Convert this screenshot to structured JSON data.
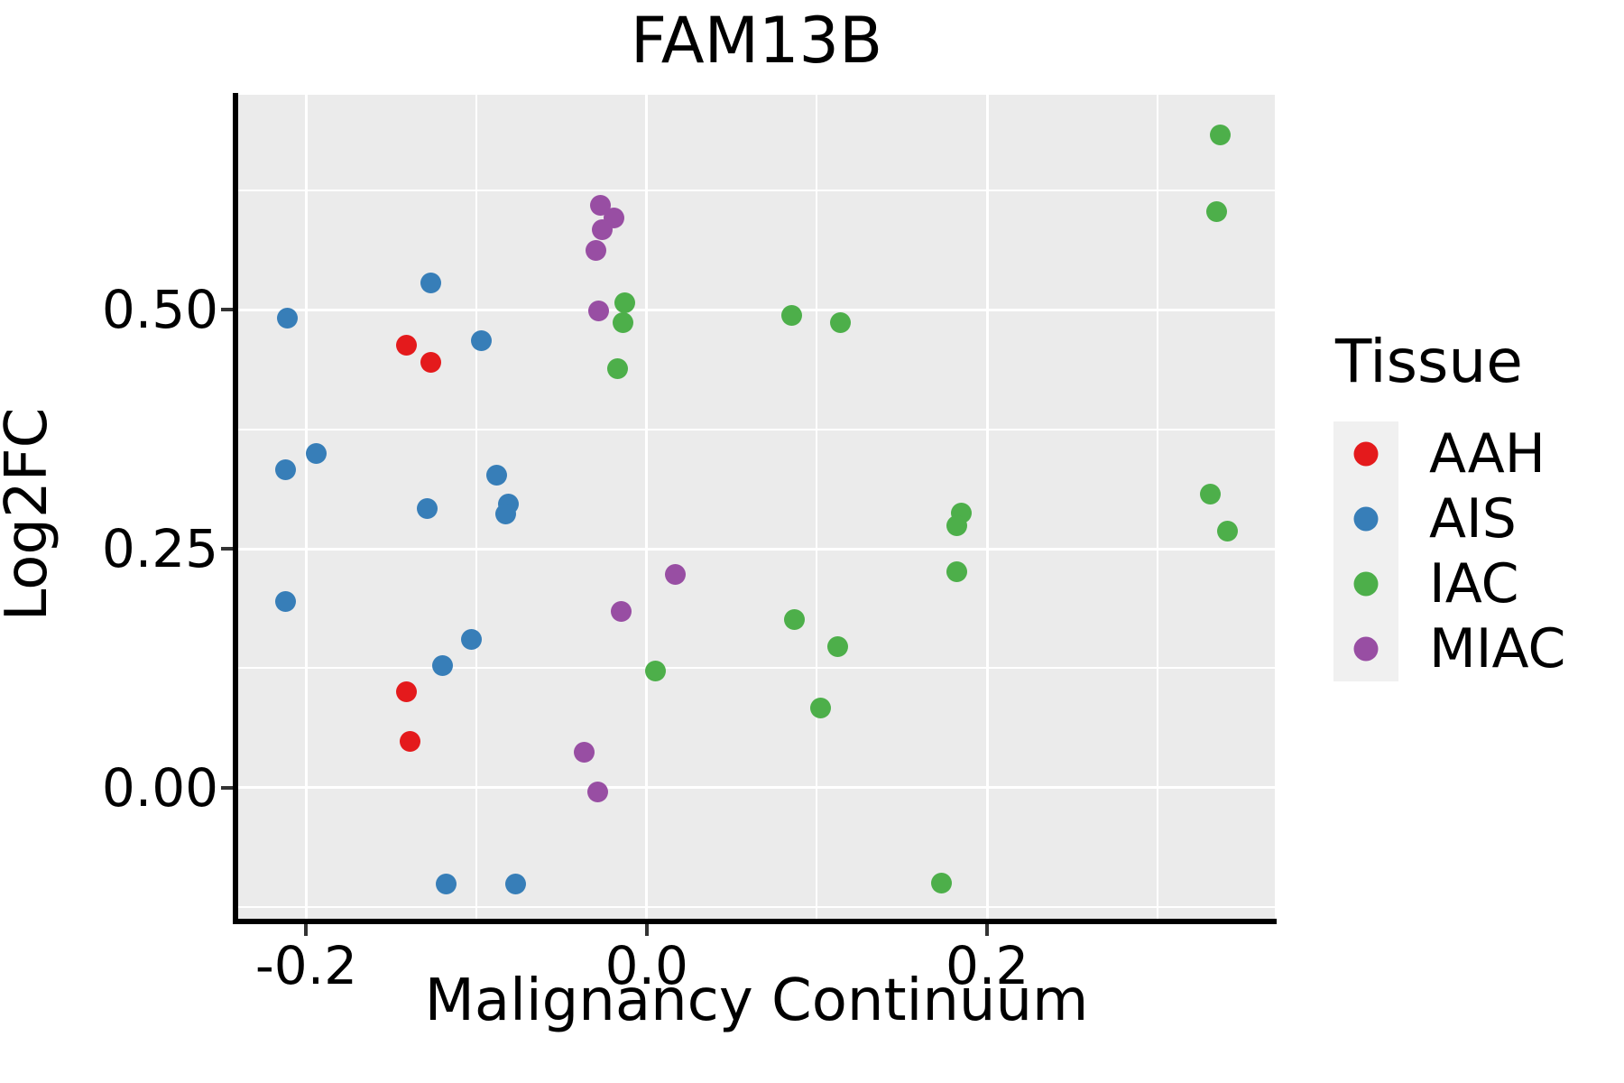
{
  "title": "FAM13B",
  "axes": {
    "x_label": "Malignancy Continuum",
    "y_label": "Log2FC"
  },
  "legend": {
    "title": "Tissue",
    "items": [
      {
        "label": "AAH",
        "color": "#E41A1C"
      },
      {
        "label": "AIS",
        "color": "#377EB8"
      },
      {
        "label": "IAC",
        "color": "#4DAF4A"
      },
      {
        "label": "MIAC",
        "color": "#984EA3"
      }
    ]
  },
  "colors": {
    "panel_background": "#EBEBEB",
    "gridline": "#FFFFFF",
    "axis_line": "#000000",
    "aah": "#E41A1C",
    "ais": "#377EB8",
    "iac": "#4DAF4A",
    "miac": "#984EA3"
  },
  "chart_data": {
    "type": "scatter",
    "title": "FAM13B",
    "xlabel": "Malignancy Continuum",
    "ylabel": "Log2FC",
    "xlim": [
      -0.24,
      0.369
    ],
    "ylim": [
      -0.139,
      0.725
    ],
    "grid": true,
    "legend_position": "right",
    "legend_title": "Tissue",
    "x_ticks": [
      {
        "value": -0.2,
        "label": "-0.2"
      },
      {
        "value": 0.0,
        "label": "0.0"
      },
      {
        "value": 0.2,
        "label": "0.2"
      }
    ],
    "y_ticks": [
      {
        "value": 0.0,
        "label": "0.00"
      },
      {
        "value": 0.25,
        "label": "0.25"
      },
      {
        "value": 0.5,
        "label": "0.50"
      }
    ],
    "x_minor_gridlines": [
      -0.1,
      0.1,
      0.3
    ],
    "y_minor_gridlines": [
      -0.125,
      0.125,
      0.375,
      0.625
    ],
    "series": [
      {
        "name": "AAH",
        "color": "#E41A1C",
        "points": [
          [
            -0.141,
            0.463
          ],
          [
            -0.127,
            0.445
          ],
          [
            -0.141,
            0.1
          ],
          [
            -0.139,
            0.048
          ]
        ]
      },
      {
        "name": "AIS",
        "color": "#377EB8",
        "points": [
          [
            -0.211,
            0.491
          ],
          [
            -0.127,
            0.528
          ],
          [
            -0.097,
            0.468
          ],
          [
            -0.194,
            0.35
          ],
          [
            -0.212,
            0.333
          ],
          [
            -0.088,
            0.327
          ],
          [
            -0.129,
            0.292
          ],
          [
            -0.081,
            0.297
          ],
          [
            -0.083,
            0.286
          ],
          [
            -0.212,
            0.195
          ],
          [
            -0.103,
            0.155
          ],
          [
            -0.12,
            0.128
          ],
          [
            -0.118,
            -0.101
          ],
          [
            -0.077,
            -0.101
          ]
        ]
      },
      {
        "name": "IAC",
        "color": "#4DAF4A",
        "points": [
          [
            0.337,
            0.683
          ],
          [
            0.335,
            0.603
          ],
          [
            -0.013,
            0.507
          ],
          [
            -0.014,
            0.487
          ],
          [
            -0.017,
            0.438
          ],
          [
            0.085,
            0.494
          ],
          [
            0.114,
            0.487
          ],
          [
            0.331,
            0.307
          ],
          [
            0.341,
            0.268
          ],
          [
            0.185,
            0.287
          ],
          [
            0.182,
            0.274
          ],
          [
            0.182,
            0.226
          ],
          [
            0.087,
            0.176
          ],
          [
            0.112,
            0.148
          ],
          [
            0.005,
            0.122
          ],
          [
            0.102,
            0.083
          ],
          [
            0.173,
            -0.1
          ]
        ]
      },
      {
        "name": "MIAC",
        "color": "#984EA3",
        "points": [
          [
            -0.027,
            0.609
          ],
          [
            -0.019,
            0.596
          ],
          [
            -0.026,
            0.584
          ],
          [
            -0.03,
            0.562
          ],
          [
            -0.028,
            0.499
          ],
          [
            0.017,
            0.223
          ],
          [
            -0.015,
            0.184
          ],
          [
            -0.037,
            0.037
          ],
          [
            -0.029,
            -0.004
          ]
        ]
      }
    ]
  }
}
